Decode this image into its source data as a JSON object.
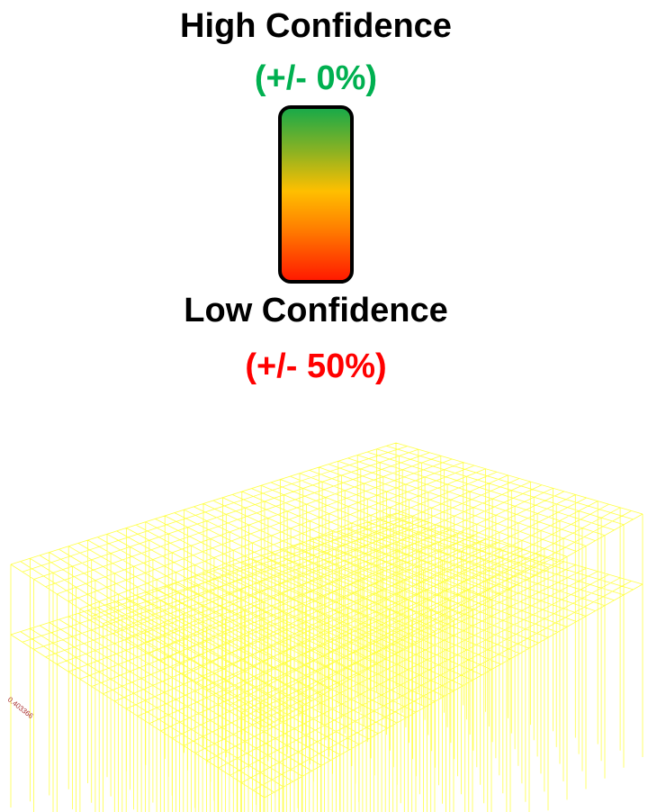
{
  "legend": {
    "high_title": "High Confidence",
    "high_range": "(+/- 0%)",
    "low_title": "Low Confidence",
    "low_range": "(+/- 50%)",
    "colors": {
      "high": "#1aaa48",
      "mid_high": "#8cb222",
      "mid": "#ffbf00",
      "mid_low": "#ff7f00",
      "low": "#ff1a00",
      "high_text": "#00b050",
      "low_text": "#ff0000"
    }
  },
  "model": {
    "node_label": "0.403366",
    "wire_color": "#ffff33",
    "label_color": "#aa3333"
  }
}
